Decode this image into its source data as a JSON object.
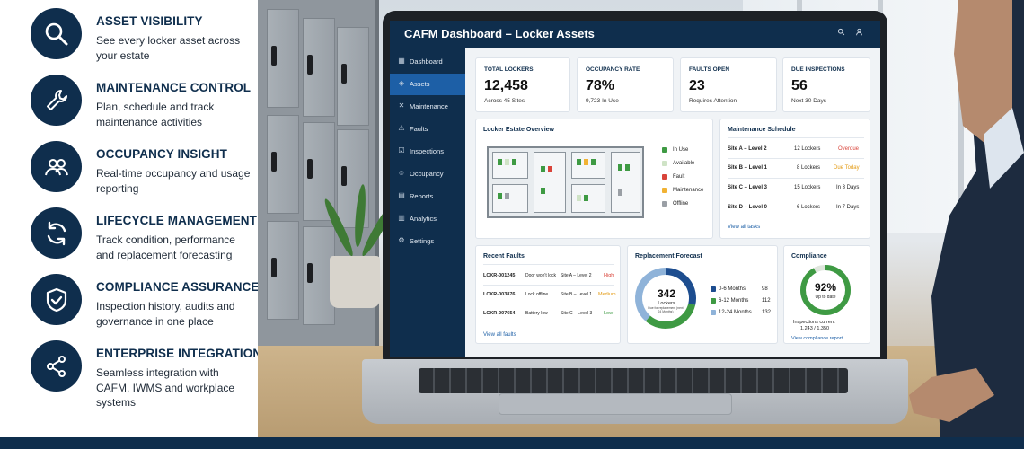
{
  "features": [
    {
      "title": "ASSET VISIBILITY",
      "desc": "See every locker asset across your estate",
      "icon": "search-icon"
    },
    {
      "title": "MAINTENANCE CONTROL",
      "desc": "Plan, schedule and track maintenance activities",
      "icon": "wrench-icon"
    },
    {
      "title": "OCCUPANCY INSIGHT",
      "desc": "Real-time occupancy and usage reporting",
      "icon": "users-icon"
    },
    {
      "title": "LIFECYCLE MANAGEMENT",
      "desc": "Track condition, performance and replacement forecasting",
      "icon": "refresh-icon"
    },
    {
      "title": "COMPLIANCE ASSURANCE",
      "desc": "Inspection history, audits and governance in one place",
      "icon": "shield-check-icon"
    },
    {
      "title": "ENTERPRISE INTEGRATION",
      "desc": "Seamless integration with CAFM, IWMS and workplace systems",
      "icon": "network-icon"
    }
  ],
  "dashboard": {
    "title": "CAFM Dashboard – Locker Assets",
    "header_icons": [
      "search-icon",
      "user-icon"
    ],
    "nav": [
      {
        "label": "Dashboard",
        "icon": "grid-icon",
        "active": false
      },
      {
        "label": "Assets",
        "icon": "cube-icon",
        "active": true
      },
      {
        "label": "Maintenance",
        "icon": "wrench-icon",
        "active": false
      },
      {
        "label": "Faults",
        "icon": "warning-icon",
        "active": false
      },
      {
        "label": "Inspections",
        "icon": "checklist-icon",
        "active": false
      },
      {
        "label": "Occupancy",
        "icon": "users-icon",
        "active": false
      },
      {
        "label": "Reports",
        "icon": "document-icon",
        "active": false
      },
      {
        "label": "Analytics",
        "icon": "bar-chart-icon",
        "active": false
      },
      {
        "label": "Settings",
        "icon": "gear-icon",
        "active": false
      }
    ],
    "kpis": [
      {
        "label": "TOTAL LOCKERS",
        "value": "12,458",
        "sub": "Across 45 Sites"
      },
      {
        "label": "OCCUPANCY RATE",
        "value": "78%",
        "sub": "9,723 In Use"
      },
      {
        "label": "FAULTS OPEN",
        "value": "23",
        "sub": "Requires Attention"
      },
      {
        "label": "DUE INSPECTIONS",
        "value": "56",
        "sub": "Next 30 Days"
      }
    ],
    "overview": {
      "title": "Locker Estate Overview",
      "legend": [
        {
          "label": "In Use",
          "color": "#3e9a43"
        },
        {
          "label": "Available",
          "color": "#cfe3c6"
        },
        {
          "label": "Fault",
          "color": "#d9443a"
        },
        {
          "label": "Maintenance",
          "color": "#f1b233"
        },
        {
          "label": "Offline",
          "color": "#9a9fa5"
        }
      ]
    },
    "schedule": {
      "title": "Maintenance Schedule",
      "rows": [
        {
          "site": "Site A – Level 2",
          "count": "12 Lockers",
          "status": "Overdue",
          "color": "#d9443a"
        },
        {
          "site": "Site B – Level 1",
          "count": "8 Lockers",
          "status": "Due Today",
          "color": "#e39a12"
        },
        {
          "site": "Site C – Level 3",
          "count": "15 Lockers",
          "status": "In 3 Days",
          "color": "#222222"
        },
        {
          "site": "Site D – Level 0",
          "count": "6 Lockers",
          "status": "In 7 Days",
          "color": "#222222"
        }
      ],
      "link": "View all tasks"
    },
    "faults": {
      "title": "Recent Faults",
      "rows": [
        {
          "id": "LCKR-001245",
          "issue": "Door won't lock",
          "site": "Site A – Level 2",
          "priority": "High",
          "color": "#d9443a"
        },
        {
          "id": "LCKR-003876",
          "issue": "Lock offline",
          "site": "Site B – Level 1",
          "priority": "Medium",
          "color": "#e39a12"
        },
        {
          "id": "LCKR-007654",
          "issue": "Battery low",
          "site": "Site C – Level 3",
          "priority": "Low",
          "color": "#3e9a43"
        }
      ],
      "link": "View all faults"
    },
    "forecast": {
      "title": "Replacement Forecast",
      "center_value": "342",
      "center_label": "Lockers",
      "center_sub": "Due for replacement (next 24 Months)",
      "items": [
        {
          "label": "0-6 Months",
          "value": 98,
          "color": "#1d4d8f"
        },
        {
          "label": "6-12 Months",
          "value": 112,
          "color": "#3e9a43"
        },
        {
          "label": "12-24 Months",
          "value": 132,
          "color": "#8fb3d9"
        }
      ]
    },
    "compliance": {
      "title": "Compliance",
      "percent": 92,
      "percent_label": "92%",
      "sub": "Up to date",
      "caption": "Inspections current",
      "count": "1,243 / 1,350",
      "link": "View compliance report",
      "color": "#3e9a43"
    }
  }
}
